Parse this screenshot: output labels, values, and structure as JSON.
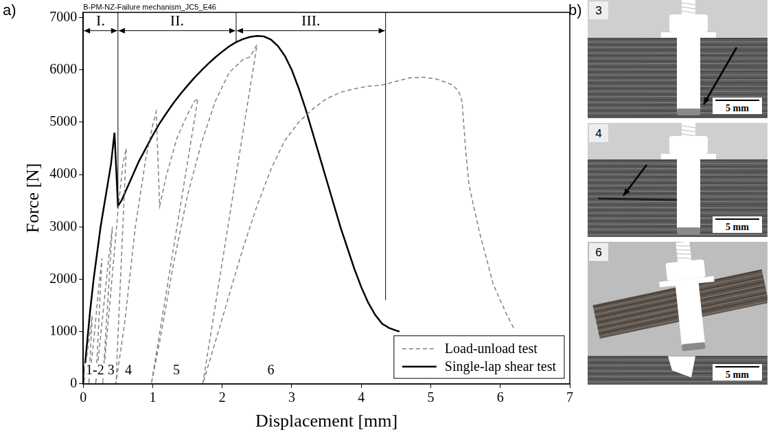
{
  "panel_labels": [
    "a)",
    "b)"
  ],
  "chart_data": {
    "type": "line",
    "title": "B-PM-NZ-Failure mechanism_JC5_E46",
    "x_label": "Displacement [mm]",
    "y_label": "Force [N]",
    "xlim": [
      0,
      7
    ],
    "xticks": [
      0,
      1,
      2,
      3,
      4,
      5,
      6,
      7
    ],
    "ylim": [
      0,
      7100
    ],
    "yticks": [
      0,
      1000,
      2000,
      3000,
      4000,
      5000,
      6000,
      7000
    ],
    "grid": false,
    "legend": "lower right",
    "series": [
      {
        "name": "Load-unload test",
        "color": "#808080",
        "line_style": "dashed",
        "x": [
          0,
          0.05,
          0.1,
          0.13,
          0.08,
          0.15,
          0.22,
          0.27,
          0.18,
          0.25,
          0.35,
          0.42,
          0.28,
          0.38,
          0.5,
          0.57,
          0.62,
          0.47,
          0.6,
          0.75,
          0.9,
          1.0,
          1.05,
          1.1,
          1.2,
          1.35,
          1.5,
          1.6,
          1.65,
          0.98,
          1.1,
          1.3,
          1.5,
          1.7,
          1.9,
          2.1,
          2.3,
          2.4,
          2.5,
          1.72,
          1.9,
          2.1,
          2.3,
          2.5,
          2.7,
          2.9,
          3.1,
          3.3,
          3.5,
          3.7,
          3.9,
          4.1,
          4.3,
          4.5,
          4.7,
          4.9,
          5.1,
          5.3,
          5.4,
          5.45,
          5.5,
          5.55,
          5.6,
          5.7,
          5.8,
          5.9,
          6.0,
          6.1,
          6.2
        ],
        "values": [
          0,
          500,
          1000,
          1300,
          0,
          800,
          1800,
          2400,
          0,
          900,
          2200,
          3000,
          0,
          1500,
          3300,
          4200,
          4500,
          0,
          1200,
          3000,
          4300,
          4950,
          5200,
          3400,
          4000,
          4700,
          5150,
          5400,
          5450,
          0,
          800,
          2300,
          3600,
          4600,
          5400,
          5950,
          6200,
          6250,
          6480,
          0,
          800,
          1700,
          2600,
          3400,
          4100,
          4650,
          5000,
          5250,
          5450,
          5570,
          5640,
          5690,
          5710,
          5780,
          5850,
          5860,
          5820,
          5720,
          5600,
          5400,
          4500,
          3800,
          3500,
          2900,
          2400,
          1900,
          1600,
          1300,
          1050
        ]
      },
      {
        "name": "Single-lap shear test",
        "color": "#000000",
        "line_style": "solid",
        "x": [
          0,
          0.05,
          0.1,
          0.15,
          0.2,
          0.25,
          0.3,
          0.35,
          0.4,
          0.45,
          0.5,
          0.55,
          0.6,
          0.7,
          0.8,
          0.9,
          1.0,
          1.1,
          1.2,
          1.3,
          1.4,
          1.5,
          1.6,
          1.7,
          1.8,
          1.9,
          2.0,
          2.1,
          2.2,
          2.3,
          2.4,
          2.5,
          2.6,
          2.7,
          2.8,
          2.9,
          3.0,
          3.1,
          3.2,
          3.3,
          3.4,
          3.5,
          3.6,
          3.7,
          3.8,
          3.9,
          4.0,
          4.1,
          4.2,
          4.3,
          4.4,
          4.5,
          4.55
        ],
        "values": [
          0,
          700,
          1400,
          2000,
          2500,
          3000,
          3400,
          3800,
          4200,
          4800,
          3400,
          3500,
          3650,
          3950,
          4250,
          4500,
          4750,
          4980,
          5180,
          5370,
          5540,
          5700,
          5850,
          5990,
          6120,
          6240,
          6350,
          6450,
          6530,
          6590,
          6630,
          6650,
          6640,
          6580,
          6460,
          6270,
          6000,
          5650,
          5250,
          4800,
          4350,
          3900,
          3450,
          3000,
          2600,
          2200,
          1850,
          1550,
          1320,
          1150,
          1070,
          1020,
          1000
        ]
      }
    ],
    "regions": [
      {
        "label": "I.",
        "from": 0,
        "to": 0.5,
        "y": 6750
      },
      {
        "label": "II.",
        "from": 0.5,
        "to": 2.2,
        "y": 6750
      },
      {
        "label": "III.",
        "from": 2.2,
        "to": 4.35,
        "y": 6750
      }
    ],
    "boundaries": [
      {
        "x": 0.5,
        "y": [
          3400,
          7100
        ]
      },
      {
        "x": 2.2,
        "y": [
          6530,
          7100
        ]
      },
      {
        "x": 4.35,
        "y": [
          1600,
          7100
        ]
      }
    ],
    "stage_labels": [
      {
        "text": "1-2",
        "x": 0.17,
        "y": 250
      },
      {
        "text": "3",
        "x": 0.4,
        "y": 250
      },
      {
        "text": "4",
        "x": 0.65,
        "y": 250
      },
      {
        "text": "5",
        "x": 1.34,
        "y": 250
      },
      {
        "text": "6",
        "x": 2.7,
        "y": 250
      }
    ]
  },
  "images": [
    {
      "label": "3",
      "scale_bar": "5 mm"
    },
    {
      "label": "4",
      "scale_bar": "5 mm"
    },
    {
      "label": "6",
      "scale_bar": "5 mm"
    }
  ]
}
